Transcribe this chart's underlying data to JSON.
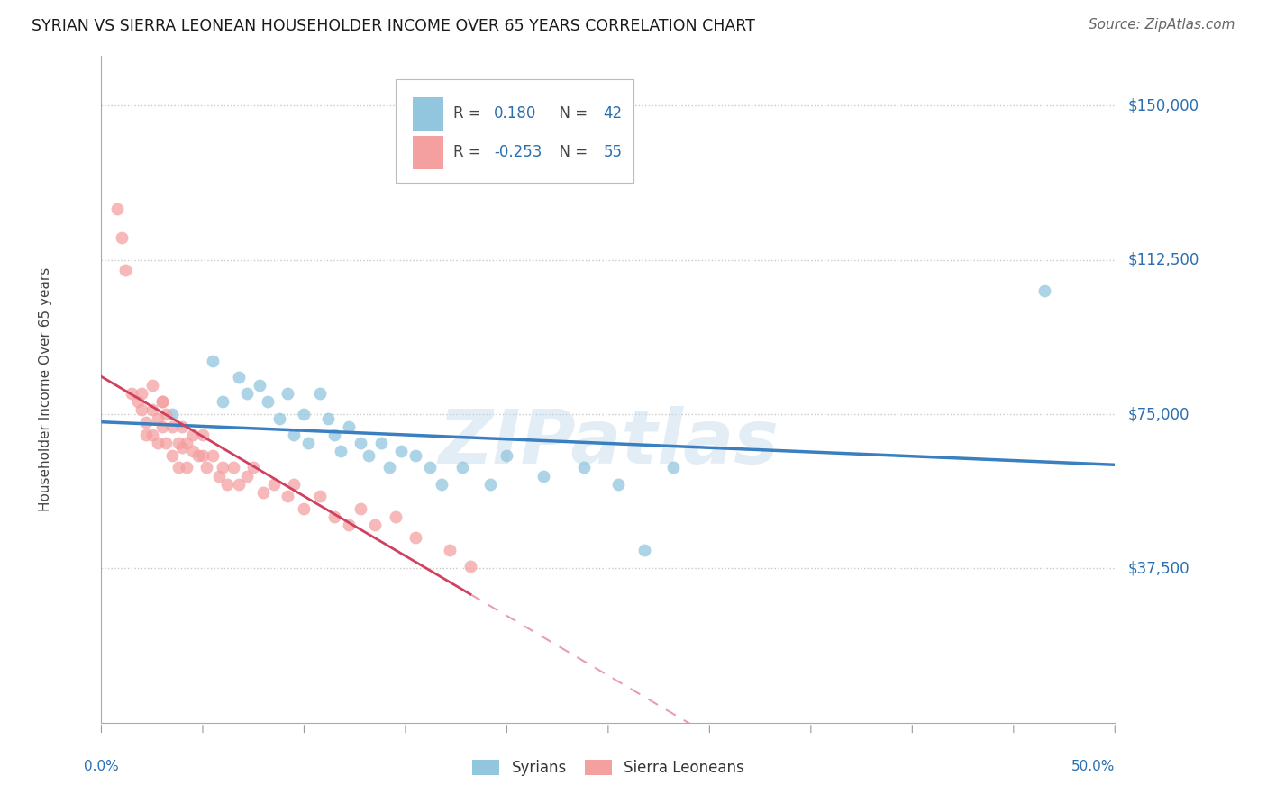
{
  "title": "SYRIAN VS SIERRA LEONEAN HOUSEHOLDER INCOME OVER 65 YEARS CORRELATION CHART",
  "source": "Source: ZipAtlas.com",
  "ylabel": "Householder Income Over 65 years",
  "watermark": "ZIPatlas",
  "ylim": [
    0,
    162000
  ],
  "xlim": [
    0.0,
    0.5
  ],
  "background_color": "#ffffff",
  "syrian_color": "#92c5de",
  "sierra_leone_color": "#f4a0a0",
  "syrian_line_color": "#3a7fbf",
  "sierra_leone_line_color": "#d04060",
  "legend_color": "#2a6faf",
  "gridline_color": "#c8c8c8",
  "syrian_x": [
    0.035,
    0.055,
    0.06,
    0.068,
    0.072,
    0.078,
    0.082,
    0.088,
    0.092,
    0.095,
    0.1,
    0.102,
    0.108,
    0.112,
    0.115,
    0.118,
    0.122,
    0.128,
    0.132,
    0.138,
    0.142,
    0.148,
    0.155,
    0.162,
    0.168,
    0.178,
    0.192,
    0.2,
    0.218,
    0.238,
    0.255,
    0.268,
    0.282,
    0.465
  ],
  "syrian_y": [
    75000,
    88000,
    78000,
    84000,
    80000,
    82000,
    78000,
    74000,
    80000,
    70000,
    75000,
    68000,
    80000,
    74000,
    70000,
    66000,
    72000,
    68000,
    65000,
    68000,
    62000,
    66000,
    65000,
    62000,
    58000,
    62000,
    58000,
    65000,
    60000,
    62000,
    58000,
    42000,
    62000,
    105000
  ],
  "sierra_x": [
    0.008,
    0.01,
    0.012,
    0.015,
    0.018,
    0.02,
    0.022,
    0.022,
    0.025,
    0.025,
    0.025,
    0.028,
    0.028,
    0.03,
    0.03,
    0.032,
    0.032,
    0.035,
    0.035,
    0.038,
    0.038,
    0.04,
    0.04,
    0.042,
    0.042,
    0.045,
    0.045,
    0.048,
    0.05,
    0.05,
    0.052,
    0.055,
    0.058,
    0.06,
    0.062,
    0.065,
    0.068,
    0.072,
    0.075,
    0.08,
    0.085,
    0.092,
    0.095,
    0.1,
    0.108,
    0.115,
    0.122,
    0.128,
    0.135,
    0.145,
    0.155,
    0.172,
    0.182,
    0.02,
    0.03
  ],
  "sierra_y": [
    125000,
    118000,
    110000,
    80000,
    78000,
    76000,
    73000,
    70000,
    82000,
    76000,
    70000,
    74000,
    68000,
    78000,
    72000,
    75000,
    68000,
    72000,
    65000,
    68000,
    62000,
    72000,
    67000,
    68000,
    62000,
    66000,
    70000,
    65000,
    70000,
    65000,
    62000,
    65000,
    60000,
    62000,
    58000,
    62000,
    58000,
    60000,
    62000,
    56000,
    58000,
    55000,
    58000,
    52000,
    55000,
    50000,
    48000,
    52000,
    48000,
    50000,
    45000,
    42000,
    38000,
    80000,
    78000
  ],
  "ytick_vals": [
    37500,
    75000,
    112500,
    150000
  ],
  "ytick_labels": [
    "$37,500",
    "$75,000",
    "$112,500",
    "$150,000"
  ]
}
